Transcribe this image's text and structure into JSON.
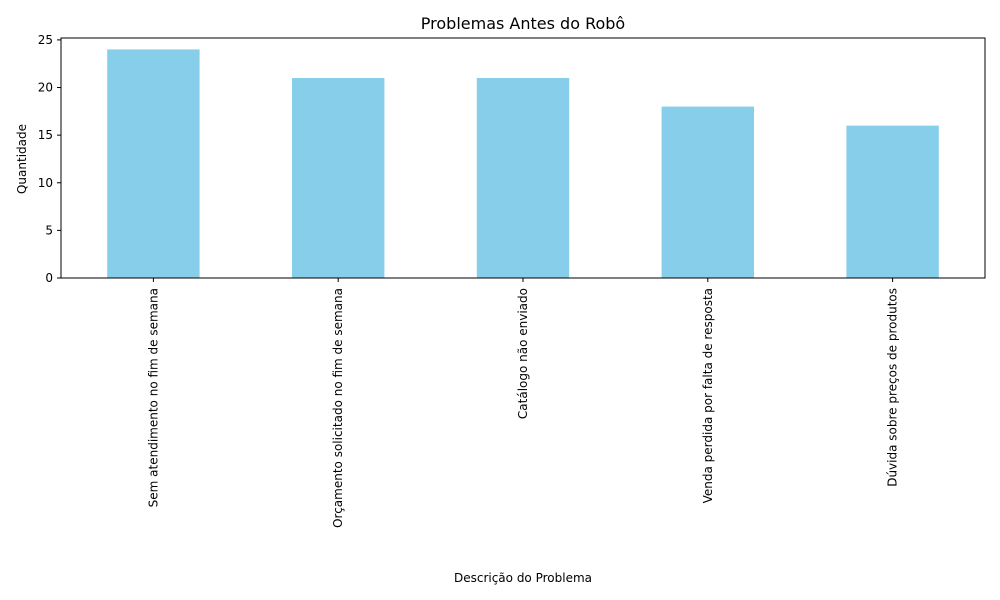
{
  "chart_data": {
    "type": "bar",
    "title": "Problemas Antes do Robô",
    "xlabel": "Descrição do Problema",
    "ylabel": "Quantidade",
    "categories": [
      "Sem atendimento no fim de semana",
      "Orçamento solicitado no fim de semana",
      "Catálogo não enviado",
      "Venda perdida por falta de resposta",
      "Dúvida sobre preços de produtos"
    ],
    "values": [
      24,
      21,
      21,
      18,
      16
    ],
    "ylim": [
      0,
      25.2
    ],
    "yticks": [
      0,
      5,
      10,
      15,
      20,
      25
    ],
    "bar_color": "#87ceeb",
    "grid": false,
    "legend": "none"
  }
}
